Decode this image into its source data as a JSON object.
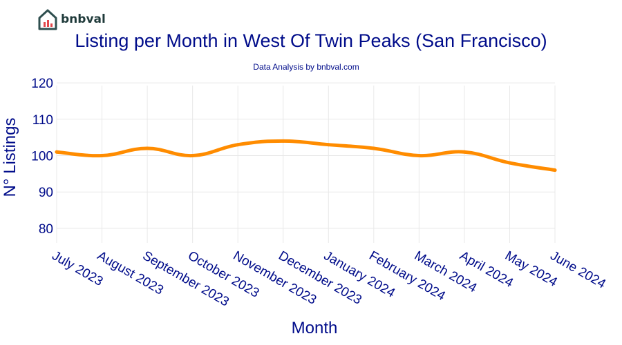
{
  "logo": {
    "text": "bnbval",
    "icon": "house-logo-icon"
  },
  "colors": {
    "title": "#000c8a",
    "line": "#ff8c00",
    "grid": "#e8e8e8"
  },
  "chart_data": {
    "type": "line",
    "title": "Listing per Month in West Of Twin Peaks (San Francisco)",
    "subtitle": "Data Analysis by bnbval.com",
    "xlabel": "Month",
    "ylabel": "N° Listings",
    "categories": [
      "July 2023",
      "August 2023",
      "September 2023",
      "October 2023",
      "November 2023",
      "December 2023",
      "January 2024",
      "February 2024",
      "March 2024",
      "April 2024",
      "May 2024",
      "June 2024"
    ],
    "series": [
      {
        "values": [
          101,
          100,
          102,
          100,
          103,
          104,
          103,
          102,
          100,
          101,
          98,
          96
        ]
      }
    ],
    "ylim": [
      76,
      124
    ],
    "yticks": [
      80,
      90,
      100,
      110,
      120
    ],
    "grid": true,
    "legend": "none"
  }
}
